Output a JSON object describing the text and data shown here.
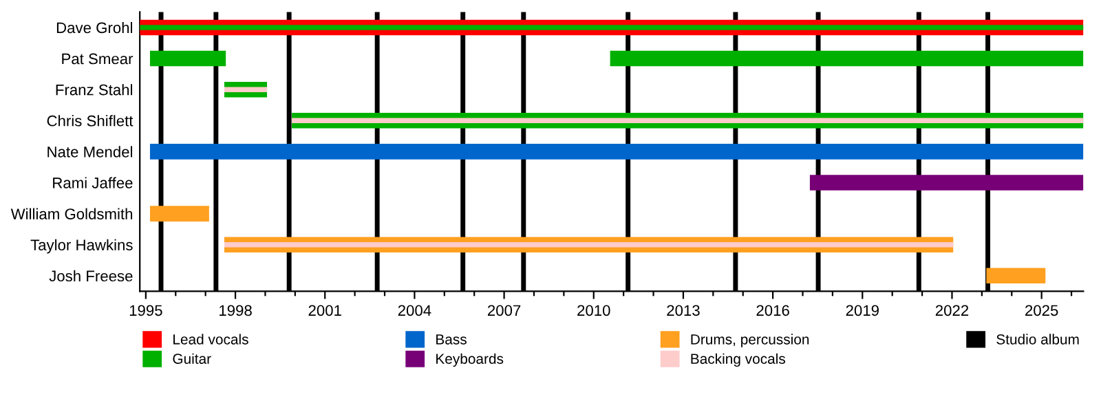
{
  "chart_data": {
    "type": "bar",
    "orientation": "horizontal",
    "categories": [
      "Dave Grohl",
      "Pat Smear",
      "Franz Stahl",
      "Chris Shiflett",
      "Nate Mendel",
      "Rami Jaffee",
      "William Goldsmith",
      "Taylor Hawkins",
      "Josh Freese"
    ],
    "series": [
      {
        "name": "Lead vocals",
        "color": "#ff0000",
        "base": [
          1994.8,
          null,
          null,
          null,
          null,
          null,
          null,
          null,
          null
        ],
        "values": [
          31.6,
          null,
          null,
          null,
          null,
          null,
          null,
          null,
          null
        ]
      },
      {
        "name": "Guitar",
        "color": "#00b000",
        "base": [
          1994.8,
          1995.14,
          1997.63,
          1999.89,
          null,
          null,
          null,
          null,
          null
        ],
        "values": [
          31.6,
          2.54,
          1.43,
          26.51,
          null,
          null,
          null,
          null,
          null
        ]
      },
      {
        "color": "#00b000",
        "base": [
          null,
          2010.55,
          null,
          null,
          null,
          null,
          null,
          null,
          null
        ],
        "values": [
          null,
          15.85,
          null,
          null,
          null,
          null,
          null,
          null,
          null
        ]
      },
      {
        "name": "Bass",
        "color": "#0066cc",
        "base": [
          null,
          null,
          null,
          null,
          1995.14,
          null,
          null,
          null,
          null
        ],
        "values": [
          null,
          null,
          null,
          null,
          31.26,
          null,
          null,
          null,
          null
        ]
      },
      {
        "name": "Keyboards",
        "color": "#770077",
        "base": [
          null,
          null,
          null,
          null,
          null,
          2017.24,
          null,
          null,
          null
        ],
        "values": [
          null,
          null,
          null,
          null,
          null,
          9.16,
          null,
          null,
          null
        ]
      },
      {
        "name": "Drums, percussion",
        "color": "#ffa020",
        "base": [
          null,
          null,
          null,
          null,
          null,
          null,
          1995.14,
          1997.63,
          2023.15
        ],
        "values": [
          null,
          null,
          null,
          null,
          null,
          null,
          1.98,
          24.41,
          1.98
        ]
      },
      {
        "name": "Backing vocals",
        "color": "#ffcccc",
        "base": [
          null,
          null,
          1997.63,
          1999.89,
          null,
          null,
          null,
          1997.63,
          null
        ],
        "values": [
          null,
          null,
          1.43,
          26.51,
          null,
          null,
          null,
          24.41,
          null
        ]
      }
    ],
    "xlim": [
      1994.8,
      2026.4
    ],
    "xticks": [
      1995,
      {
        "value": 1996,
        "label": null
      },
      {
        "value": 1997,
        "label": null
      },
      1998,
      {
        "value": 1999,
        "label": null
      },
      {
        "value": 2000,
        "label": null
      },
      2001,
      {
        "value": 2002,
        "label": null
      },
      {
        "value": 2003,
        "label": null
      },
      2004,
      {
        "value": 2005,
        "label": null
      },
      {
        "value": 2006,
        "label": null
      },
      2007,
      {
        "value": 2008,
        "label": null
      },
      {
        "value": 2009,
        "label": null
      },
      2010,
      {
        "value": 2011,
        "label": null
      },
      {
        "value": 2012,
        "label": null
      },
      2013,
      {
        "value": 2014,
        "label": null
      },
      {
        "value": 2015,
        "label": null
      },
      2016,
      {
        "value": 2017,
        "label": null
      },
      {
        "value": 2018,
        "label": null
      },
      2019,
      {
        "value": 2020,
        "label": null
      },
      {
        "value": 2021,
        "label": null
      },
      2022,
      {
        "value": 2023,
        "label": null
      },
      {
        "value": 2024,
        "label": null
      },
      2025,
      {
        "value": 2026,
        "label": null
      }
    ],
    "ref_lines": [
      {
        "axis": "x",
        "value": 1995.51,
        "label": "Studio album",
        "color": "#000000"
      },
      {
        "axis": "x",
        "value": 1997.35,
        "color": "#000000"
      },
      {
        "axis": "x",
        "value": 1999.8,
        "color": "#000000"
      },
      {
        "axis": "x",
        "value": 2002.75,
        "color": "#000000"
      },
      {
        "axis": "x",
        "value": 2005.62,
        "color": "#000000"
      },
      {
        "axis": "x",
        "value": 2007.65,
        "color": "#000000"
      },
      {
        "axis": "x",
        "value": 2011.15,
        "color": "#000000"
      },
      {
        "axis": "x",
        "value": 2014.75,
        "color": "#000000"
      },
      {
        "axis": "x",
        "value": 2017.52,
        "color": "#000000"
      },
      {
        "axis": "x",
        "value": 2020.89,
        "color": "#000000"
      },
      {
        "axis": "x",
        "value": 2023.2,
        "color": "#000000"
      }
    ],
    "grid": false,
    "legend": "bottom"
  }
}
